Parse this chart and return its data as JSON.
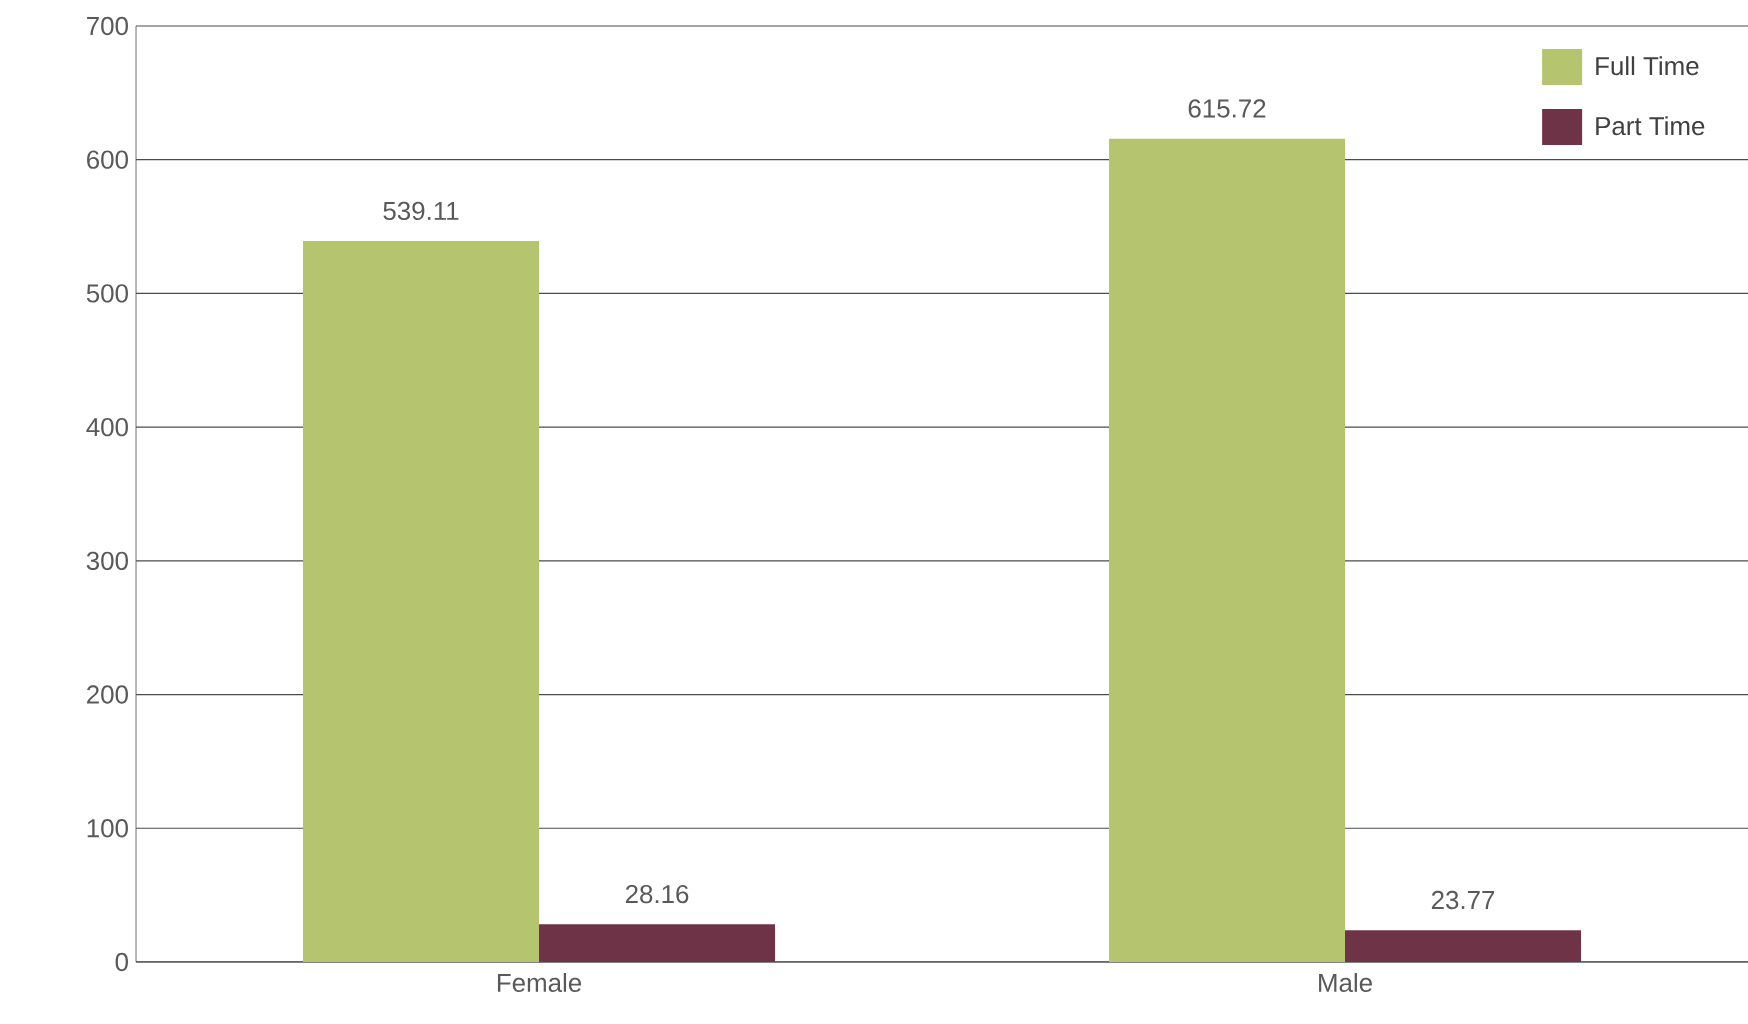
{
  "chart_data": {
    "type": "bar",
    "categories": [
      "Female",
      "Male"
    ],
    "series": [
      {
        "name": "Full Time",
        "color": "#b5c46e",
        "values": [
          539.11,
          615.72
        ]
      },
      {
        "name": "Part Time",
        "color": "#6e3347",
        "values": [
          28.16,
          23.77
        ]
      }
    ],
    "ylim": [
      0,
      700
    ],
    "yticks": [
      0,
      100,
      200,
      300,
      400,
      500,
      600,
      700
    ],
    "grid": "y",
    "legend": "top right",
    "data_labels": true
  }
}
